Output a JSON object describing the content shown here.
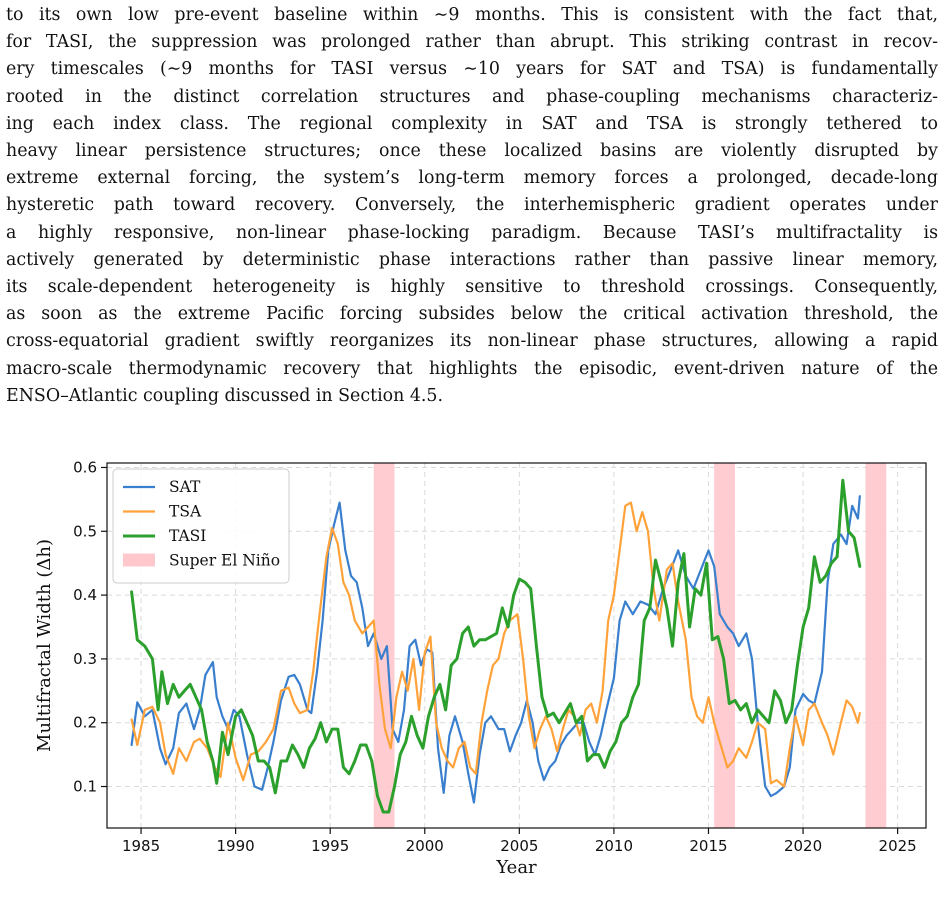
{
  "paragraph": {
    "lines": [
      "to its own low pre-event baseline within ∼9 months. This is consistent with the fact that,",
      "for TASI, the suppression was prolonged rather than abrupt. This striking contrast in recov-",
      "ery timescales (∼9 months for TASI versus ∼10 years for SAT and TSA) is fundamentally",
      "rooted in the distinct correlation structures and phase-coupling mechanisms characteriz-",
      "ing each index class. The regional complexity in SAT and TSA is strongly tethered to",
      "heavy linear persistence structures; once these localized basins are violently disrupted by",
      "extreme external forcing, the system’s long-term memory forces a prolonged, decade-long",
      "hysteretic path toward recovery. Conversely, the interhemispheric gradient operates under",
      "a highly responsive, non-linear phase-locking paradigm. Because TASI’s multifractality is",
      "actively generated by deterministic phase interactions rather than passive linear memory,",
      "its scale-dependent heterogeneity is highly sensitive to threshold crossings. Consequently,",
      "as soon as the extreme Pacific forcing subsides below the critical activation threshold, the",
      "cross-equatorial gradient swiftly reorganizes its non-linear phase structures, allowing a rapid",
      "macro-scale thermodynamic recovery that highlights the episodic, event-driven nature of the",
      "ENSO–Atlantic coupling discussed in Section 4.5."
    ]
  },
  "chart_data": {
    "type": "line",
    "xlabel": "Year",
    "ylabel": "Multifractal Width (Δh)",
    "xlim": [
      1983.2,
      2026.5
    ],
    "ylim": [
      0.035,
      0.607
    ],
    "xticks": [
      1985,
      1990,
      1995,
      2000,
      2005,
      2010,
      2015,
      2020,
      2025
    ],
    "yticks": [
      0.1,
      0.2,
      0.3,
      0.4,
      0.5,
      0.6
    ],
    "xtick_labels": [
      "1985",
      "1990",
      "1995",
      "2000",
      "2005",
      "2010",
      "2015",
      "2020",
      "2025"
    ],
    "ytick_labels": [
      "0.1",
      "0.2",
      "0.3",
      "0.4",
      "0.5",
      "0.6"
    ],
    "grid": true,
    "legend_position": "top-left",
    "shaded_regions": [
      {
        "name": "Super El Niño",
        "color": "#ffc8cc",
        "ranges": [
          [
            1997.3,
            1998.4
          ],
          [
            2015.3,
            2016.4
          ],
          [
            2023.3,
            2024.4
          ]
        ]
      }
    ],
    "series": [
      {
        "name": "SAT",
        "color": "#3a7fcd",
        "x": [
          1984.5,
          1984.8,
          1985.2,
          1985.6,
          1986.0,
          1986.3,
          1986.7,
          1987.0,
          1987.4,
          1987.8,
          1988.1,
          1988.4,
          1988.8,
          1989.0,
          1989.3,
          1989.6,
          1989.9,
          1990.2,
          1990.6,
          1991.0,
          1991.4,
          1991.7,
          1992.0,
          1992.4,
          1992.8,
          1993.1,
          1993.4,
          1993.8,
          1994.0,
          1994.3,
          1994.6,
          1994.9,
          1995.2,
          1995.5,
          1995.8,
          1996.1,
          1996.4,
          1996.7,
          1997.0,
          1997.3,
          1997.7,
          1998.0,
          1998.3,
          1998.6,
          1998.9,
          1999.2,
          1999.5,
          1999.8,
          2000.1,
          2000.4,
          2000.7,
          2001.0,
          2001.3,
          2001.6,
          2002.0,
          2002.3,
          2002.6,
          2002.9,
          2003.2,
          2003.5,
          2003.9,
          2004.2,
          2004.5,
          2004.8,
          2005.1,
          2005.4,
          2005.7,
          2006.0,
          2006.3,
          2006.6,
          2006.9,
          2007.2,
          2007.5,
          2007.8,
          2008.1,
          2008.4,
          2008.7,
          2009.0,
          2009.3,
          2009.6,
          2010.0,
          2010.3,
          2010.6,
          2011.0,
          2011.4,
          2011.8,
          2012.2,
          2012.6,
          2013.0,
          2013.4,
          2013.8,
          2014.2,
          2014.6,
          2015.0,
          2015.3,
          2015.6,
          2016.0,
          2016.3,
          2016.6,
          2017.0,
          2017.3,
          2017.6,
          2018.0,
          2018.3,
          2018.6,
          2019.0,
          2019.3,
          2019.6,
          2020.0,
          2020.3,
          2020.6,
          2021.0,
          2021.3,
          2021.6,
          2022.0,
          2022.3,
          2022.6,
          2022.9,
          2023.0
        ],
        "y": [
          0.165,
          0.232,
          0.21,
          0.22,
          0.16,
          0.135,
          0.16,
          0.215,
          0.23,
          0.19,
          0.22,
          0.275,
          0.295,
          0.24,
          0.21,
          0.19,
          0.22,
          0.21,
          0.15,
          0.1,
          0.095,
          0.13,
          0.17,
          0.235,
          0.272,
          0.275,
          0.26,
          0.22,
          0.215,
          0.28,
          0.36,
          0.47,
          0.51,
          0.545,
          0.47,
          0.43,
          0.42,
          0.38,
          0.32,
          0.34,
          0.3,
          0.32,
          0.19,
          0.17,
          0.22,
          0.32,
          0.33,
          0.29,
          0.315,
          0.31,
          0.16,
          0.09,
          0.18,
          0.21,
          0.17,
          0.12,
          0.075,
          0.15,
          0.2,
          0.21,
          0.19,
          0.19,
          0.155,
          0.18,
          0.2,
          0.235,
          0.2,
          0.14,
          0.11,
          0.13,
          0.14,
          0.165,
          0.18,
          0.19,
          0.2,
          0.2,
          0.17,
          0.15,
          0.18,
          0.22,
          0.27,
          0.36,
          0.39,
          0.37,
          0.39,
          0.385,
          0.37,
          0.41,
          0.44,
          0.47,
          0.43,
          0.41,
          0.44,
          0.47,
          0.445,
          0.37,
          0.35,
          0.34,
          0.32,
          0.34,
          0.3,
          0.2,
          0.1,
          0.085,
          0.09,
          0.1,
          0.13,
          0.22,
          0.245,
          0.235,
          0.23,
          0.28,
          0.42,
          0.48,
          0.495,
          0.48,
          0.54,
          0.52,
          0.555
        ]
      },
      {
        "name": "TSA",
        "color": "#ffa23a",
        "x": [
          1984.5,
          1984.8,
          1985.2,
          1985.6,
          1986.0,
          1986.3,
          1986.7,
          1987.0,
          1987.4,
          1987.8,
          1988.1,
          1988.5,
          1988.9,
          1989.2,
          1989.6,
          1990.0,
          1990.4,
          1990.8,
          1991.2,
          1991.6,
          1992.0,
          1992.4,
          1992.8,
          1993.1,
          1993.4,
          1993.8,
          1994.1,
          1994.4,
          1994.8,
          1995.1,
          1995.4,
          1995.7,
          1996.0,
          1996.3,
          1996.7,
          1997.0,
          1997.3,
          1997.6,
          1997.9,
          1998.2,
          1998.5,
          1998.8,
          1999.1,
          1999.4,
          1999.7,
          2000.0,
          2000.3,
          2000.6,
          2000.9,
          2001.2,
          2001.5,
          2001.8,
          2002.1,
          2002.4,
          2002.7,
          2003.0,
          2003.3,
          2003.6,
          2003.9,
          2004.2,
          2004.5,
          2004.9,
          2005.2,
          2005.5,
          2005.8,
          2006.1,
          2006.4,
          2006.7,
          2007.0,
          2007.3,
          2007.6,
          2007.9,
          2008.2,
          2008.5,
          2008.8,
          2009.1,
          2009.4,
          2009.7,
          2010.0,
          2010.3,
          2010.6,
          2010.9,
          2011.2,
          2011.5,
          2011.8,
          2012.1,
          2012.4,
          2012.8,
          2013.1,
          2013.4,
          2013.8,
          2014.1,
          2014.4,
          2014.7,
          2015.0,
          2015.3,
          2015.6,
          2016.0,
          2016.3,
          2016.6,
          2017.0,
          2017.3,
          2017.6,
          2018.0,
          2018.3,
          2018.6,
          2019.0,
          2019.3,
          2019.6,
          2020.0,
          2020.3,
          2020.6,
          2021.0,
          2021.3,
          2021.6,
          2022.0,
          2022.3,
          2022.6,
          2022.9,
          2023.0
        ],
        "y": [
          0.205,
          0.165,
          0.22,
          0.225,
          0.2,
          0.15,
          0.12,
          0.16,
          0.14,
          0.17,
          0.175,
          0.16,
          0.13,
          0.115,
          0.2,
          0.145,
          0.11,
          0.15,
          0.155,
          0.17,
          0.19,
          0.25,
          0.255,
          0.23,
          0.215,
          0.22,
          0.28,
          0.36,
          0.46,
          0.505,
          0.48,
          0.42,
          0.4,
          0.36,
          0.34,
          0.35,
          0.36,
          0.26,
          0.19,
          0.16,
          0.24,
          0.28,
          0.25,
          0.3,
          0.22,
          0.31,
          0.335,
          0.2,
          0.16,
          0.14,
          0.13,
          0.16,
          0.17,
          0.13,
          0.12,
          0.2,
          0.25,
          0.29,
          0.3,
          0.34,
          0.36,
          0.37,
          0.3,
          0.21,
          0.16,
          0.19,
          0.21,
          0.19,
          0.155,
          0.19,
          0.22,
          0.21,
          0.18,
          0.22,
          0.23,
          0.2,
          0.25,
          0.36,
          0.4,
          0.47,
          0.54,
          0.545,
          0.5,
          0.53,
          0.5,
          0.41,
          0.36,
          0.44,
          0.45,
          0.39,
          0.33,
          0.24,
          0.21,
          0.2,
          0.24,
          0.2,
          0.17,
          0.13,
          0.14,
          0.16,
          0.145,
          0.17,
          0.2,
          0.19,
          0.105,
          0.11,
          0.1,
          0.16,
          0.21,
          0.165,
          0.22,
          0.23,
          0.2,
          0.18,
          0.15,
          0.2,
          0.235,
          0.225,
          0.2,
          0.215
        ]
      },
      {
        "name": "TASI",
        "color": "#2ca02c",
        "x": [
          1984.5,
          1984.8,
          1985.2,
          1985.6,
          1985.9,
          1986.1,
          1986.4,
          1986.7,
          1987.0,
          1987.3,
          1987.6,
          1987.9,
          1988.2,
          1988.5,
          1988.8,
          1989.0,
          1989.3,
          1989.6,
          1990.0,
          1990.3,
          1990.6,
          1990.9,
          1991.2,
          1991.5,
          1991.8,
          1992.1,
          1992.4,
          1992.7,
          1993.0,
          1993.3,
          1993.6,
          1993.9,
          1994.2,
          1994.5,
          1994.8,
          1995.1,
          1995.4,
          1995.7,
          1996.0,
          1996.3,
          1996.6,
          1996.9,
          1997.2,
          1997.5,
          1997.8,
          1998.1,
          1998.4,
          1998.7,
          1999.0,
          1999.3,
          1999.6,
          1999.9,
          2000.2,
          2000.5,
          2000.8,
          2001.1,
          2001.4,
          2001.7,
          2002.0,
          2002.3,
          2002.6,
          2002.9,
          2003.2,
          2003.5,
          2003.8,
          2004.1,
          2004.4,
          2004.7,
          2005.0,
          2005.3,
          2005.6,
          2005.9,
          2006.2,
          2006.5,
          2006.8,
          2007.1,
          2007.4,
          2007.7,
          2008.0,
          2008.3,
          2008.6,
          2008.9,
          2009.2,
          2009.5,
          2009.8,
          2010.1,
          2010.4,
          2010.7,
          2011.0,
          2011.3,
          2011.6,
          2011.9,
          2012.2,
          2012.5,
          2012.8,
          2013.1,
          2013.4,
          2013.7,
          2014.0,
          2014.3,
          2014.6,
          2014.9,
          2015.2,
          2015.5,
          2015.8,
          2016.1,
          2016.4,
          2016.7,
          2017.0,
          2017.3,
          2017.6,
          2017.9,
          2018.2,
          2018.5,
          2018.8,
          2019.1,
          2019.4,
          2019.7,
          2020.0,
          2020.3,
          2020.6,
          2020.9,
          2021.2,
          2021.5,
          2021.8,
          2022.1,
          2022.4,
          2022.7,
          2023.0
        ],
        "y": [
          0.405,
          0.33,
          0.32,
          0.3,
          0.22,
          0.28,
          0.23,
          0.26,
          0.24,
          0.25,
          0.26,
          0.24,
          0.22,
          0.17,
          0.14,
          0.105,
          0.185,
          0.15,
          0.21,
          0.22,
          0.2,
          0.18,
          0.14,
          0.14,
          0.13,
          0.09,
          0.14,
          0.14,
          0.165,
          0.15,
          0.13,
          0.16,
          0.175,
          0.2,
          0.17,
          0.19,
          0.19,
          0.13,
          0.12,
          0.14,
          0.165,
          0.165,
          0.14,
          0.085,
          0.06,
          0.06,
          0.1,
          0.15,
          0.17,
          0.21,
          0.18,
          0.16,
          0.21,
          0.24,
          0.26,
          0.22,
          0.29,
          0.3,
          0.34,
          0.35,
          0.32,
          0.33,
          0.33,
          0.335,
          0.34,
          0.38,
          0.35,
          0.4,
          0.425,
          0.42,
          0.41,
          0.32,
          0.24,
          0.21,
          0.215,
          0.2,
          0.215,
          0.23,
          0.2,
          0.21,
          0.14,
          0.15,
          0.15,
          0.13,
          0.155,
          0.17,
          0.2,
          0.21,
          0.24,
          0.26,
          0.36,
          0.38,
          0.455,
          0.42,
          0.38,
          0.32,
          0.42,
          0.465,
          0.35,
          0.41,
          0.4,
          0.45,
          0.33,
          0.335,
          0.3,
          0.23,
          0.235,
          0.22,
          0.23,
          0.2,
          0.22,
          0.21,
          0.2,
          0.25,
          0.235,
          0.2,
          0.22,
          0.29,
          0.35,
          0.38,
          0.46,
          0.42,
          0.43,
          0.45,
          0.46,
          0.58,
          0.5,
          0.49,
          0.445
        ]
      }
    ]
  }
}
